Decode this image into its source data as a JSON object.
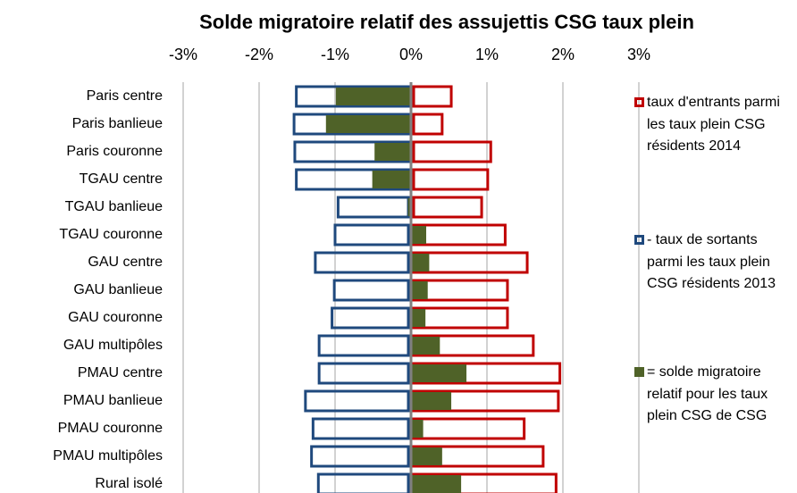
{
  "chart_data": {
    "type": "hbar",
    "title": "Solde migratoire relatif des assujettis CSG taux plein",
    "categories": [
      "Paris centre",
      "Paris banlieue",
      "Paris couronne",
      "TGAU centre",
      "TGAU banlieue",
      "TGAU couronne",
      "GAU centre",
      "GAU banlieue",
      "GAU couronne",
      "GAU multipôles",
      "PMAU centre",
      "PMAU banlieue",
      "PMAU couronne",
      "PMAU multipôles",
      "Rural isolé"
    ],
    "series": [
      {
        "name": "taux d'entrants parmi les taux plein CSG résidents 2014",
        "color": "#c00000",
        "style": "outline",
        "values": [
          0.53,
          0.41,
          1.05,
          1.01,
          0.93,
          1.24,
          1.53,
          1.27,
          1.27,
          1.61,
          1.96,
          1.94,
          1.49,
          1.74,
          1.91
        ]
      },
      {
        "name": "- taux de sortants parmi les taux plein CSG résidents 2013",
        "color": "#1f497d",
        "style": "outline",
        "values": [
          -1.51,
          -1.54,
          -1.53,
          -1.51,
          -0.96,
          -1.0,
          -1.26,
          -1.01,
          -1.04,
          -1.21,
          -1.21,
          -1.39,
          -1.29,
          -1.31,
          -1.22
        ]
      },
      {
        "name": "= solde migratoire relatif pour les taux plein CSG de CSG",
        "color": "#4f6228",
        "style": "fill",
        "values": [
          -0.99,
          -1.12,
          -0.48,
          -0.51,
          -0.04,
          0.2,
          0.24,
          0.22,
          0.19,
          0.38,
          0.73,
          0.53,
          0.16,
          0.41,
          0.66
        ]
      }
    ],
    "xlim": [
      -3,
      3
    ],
    "xticks": [
      {
        "value": -3,
        "label": "-3%"
      },
      {
        "value": -2,
        "label": "-2%"
      },
      {
        "value": -1,
        "label": "-1%"
      },
      {
        "value": 0,
        "label": "0%"
      },
      {
        "value": 1,
        "label": "1%"
      },
      {
        "value": 2,
        "label": "2%"
      },
      {
        "value": 3,
        "label": "3%"
      }
    ],
    "grid": true,
    "legend": "right"
  }
}
